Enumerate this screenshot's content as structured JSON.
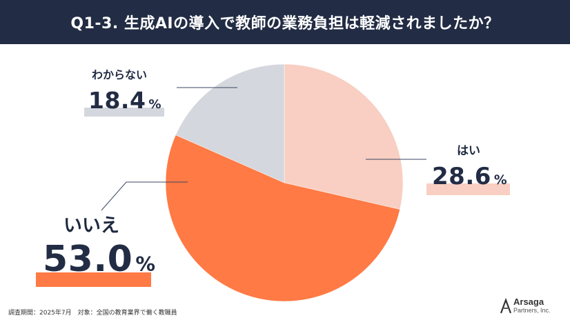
{
  "header": {
    "title": "Q1-3. 生成AIの導入で教師の業務負担は軽減されましたか？"
  },
  "chart_data": {
    "type": "pie",
    "title": "Q1-3. 生成AIの導入で教師の業務負担は軽減されましたか？",
    "unit": "%",
    "slices": [
      {
        "label": "はい",
        "value": 28.6,
        "display": "28.6",
        "color": "#f8cfc2"
      },
      {
        "label": "いいえ",
        "value": 53.0,
        "display": "53.0",
        "color": "#ff7a45"
      },
      {
        "label": "わからない",
        "value": 18.4,
        "display": "18.4",
        "color": "#d4d7dd"
      }
    ]
  },
  "footer": {
    "survey_note": "調査期間：2025年7月　対象：全国の教育業界で働く教職員"
  },
  "logo": {
    "name": "Arsaga",
    "sub": "Partners, Inc."
  }
}
